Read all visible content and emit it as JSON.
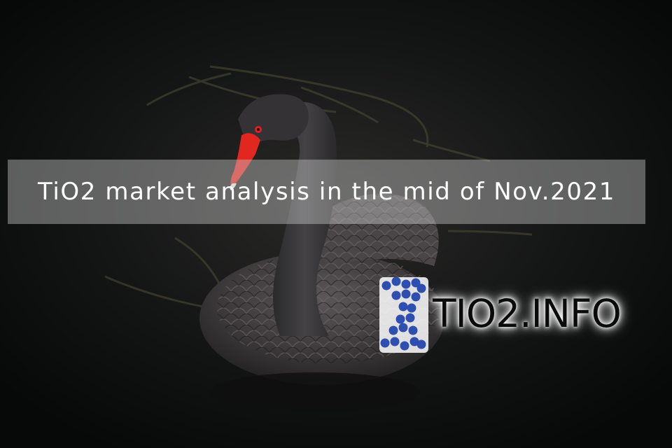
{
  "banner": {
    "title": "TiO2 market analysis in the mid of Nov.2021",
    "text_color": "#ffffff"
  },
  "logo": {
    "text": "TIO2.INFO",
    "text_color": "#0a0a0a",
    "mark_color": "#2f4fb0"
  },
  "photo": {
    "subject_icon": "black-swan-photo"
  }
}
